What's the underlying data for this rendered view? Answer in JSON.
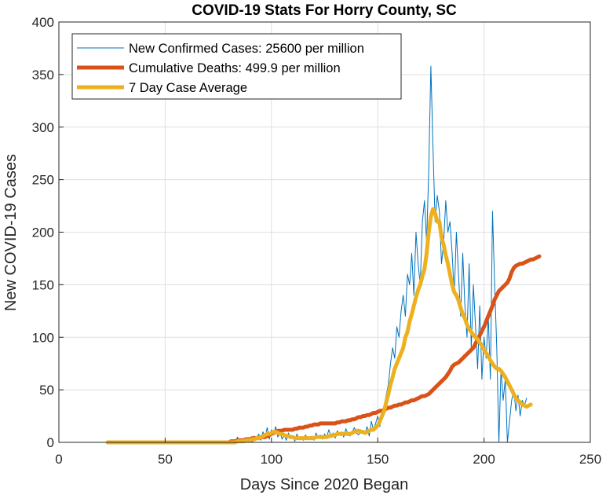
{
  "chart_data": {
    "type": "line",
    "title": "COVID-19 Stats For Horry County, SC",
    "xlabel": "Days Since 2020 Began",
    "ylabel": "New COVID-19 Cases",
    "xlim": [
      0,
      250
    ],
    "ylim": [
      0,
      400
    ],
    "xticks": [
      0,
      50,
      100,
      150,
      200,
      250
    ],
    "yticks": [
      0,
      50,
      100,
      150,
      200,
      250,
      300,
      350,
      400
    ],
    "grid": true,
    "legend_position": "top-left",
    "series": [
      {
        "name": "New Confirmed Cases: 25600 per million",
        "color": "#0072BD",
        "style": "thin",
        "x_start": 23,
        "values": [
          0,
          0,
          0,
          0,
          0,
          0,
          0,
          0,
          0,
          0,
          0,
          0,
          0,
          0,
          0,
          0,
          0,
          0,
          0,
          0,
          0,
          0,
          0,
          0,
          0,
          0,
          0,
          0,
          0,
          0,
          0,
          0,
          0,
          0,
          0,
          0,
          0,
          0,
          0,
          0,
          0,
          0,
          0,
          0,
          0,
          0,
          0,
          0,
          0,
          0,
          0,
          0,
          0,
          0,
          0,
          0,
          0,
          1,
          0,
          2,
          0,
          5,
          1,
          0,
          3,
          0,
          2,
          4,
          0,
          6,
          3,
          8,
          2,
          10,
          5,
          14,
          3,
          12,
          8,
          15,
          5,
          10,
          3,
          7,
          2,
          9,
          4,
          6,
          1,
          8,
          3,
          5,
          2,
          7,
          4,
          3,
          6,
          2,
          9,
          4,
          7,
          3,
          8,
          5,
          12,
          6,
          9,
          4,
          11,
          7,
          10,
          5,
          13,
          8,
          6,
          10,
          14,
          9,
          7,
          12,
          10,
          8,
          15,
          6,
          20,
          12,
          18,
          25,
          15,
          28,
          35,
          45,
          55,
          75,
          90,
          80,
          110,
          100,
          125,
          140,
          120,
          160,
          150,
          180,
          140,
          200,
          170,
          150,
          210,
          230,
          190,
          260,
          358,
          280,
          210,
          235,
          220,
          170,
          190,
          230,
          200,
          210,
          180,
          140,
          200,
          160,
          120,
          180,
          130,
          100,
          170,
          90,
          150,
          110,
          70,
          130,
          60,
          100,
          80,
          120,
          60,
          220,
          150,
          90,
          0,
          70,
          40,
          60,
          0,
          20,
          40,
          50,
          30,
          45,
          25,
          40,
          35,
          42
        ]
      },
      {
        "name": "Cumulative Deaths: 499.9 per million",
        "color": "#D95319",
        "style": "thick",
        "x_start": 23,
        "values": [
          0,
          0,
          0,
          0,
          0,
          0,
          0,
          0,
          0,
          0,
          0,
          0,
          0,
          0,
          0,
          0,
          0,
          0,
          0,
          0,
          0,
          0,
          0,
          0,
          0,
          0,
          0,
          0,
          0,
          0,
          0,
          0,
          0,
          0,
          0,
          0,
          0,
          0,
          0,
          0,
          0,
          0,
          0,
          0,
          0,
          0,
          0,
          0,
          0,
          0,
          0,
          0,
          0,
          0,
          0,
          0,
          0,
          0,
          1,
          1,
          1,
          2,
          2,
          2,
          2,
          3,
          3,
          3,
          4,
          4,
          4,
          4,
          5,
          5,
          5,
          6,
          7,
          8,
          9,
          10,
          11,
          11,
          11,
          12,
          12,
          12,
          12,
          12,
          13,
          13,
          14,
          14,
          14,
          15,
          15,
          16,
          16,
          17,
          17,
          17,
          18,
          18,
          18,
          18,
          18,
          18,
          18,
          18,
          19,
          19,
          20,
          20,
          20,
          21,
          21,
          22,
          22,
          23,
          24,
          24,
          25,
          25,
          26,
          26,
          27,
          28,
          28,
          29,
          30,
          30,
          31,
          32,
          33,
          33,
          34,
          35,
          35,
          36,
          36,
          37,
          38,
          38,
          39,
          40,
          40,
          41,
          42,
          43,
          44,
          44,
          45,
          46,
          48,
          50,
          52,
          54,
          56,
          58,
          60,
          62,
          65,
          68,
          72,
          74,
          75,
          76,
          78,
          80,
          82,
          84,
          86,
          88,
          90,
          94,
          98,
          102,
          106,
          110,
          115,
          120,
          125,
          130,
          136,
          140,
          144,
          146,
          148,
          150,
          152,
          156,
          162,
          166,
          168,
          169,
          170,
          170,
          171,
          172,
          173,
          174,
          174,
          175,
          176,
          177
        ]
      },
      {
        "name": "7 Day Case Average",
        "color": "#EDB120",
        "style": "thick",
        "x_start": 23,
        "values": [
          0,
          0,
          0,
          0,
          0,
          0,
          0,
          0,
          0,
          0,
          0,
          0,
          0,
          0,
          0,
          0,
          0,
          0,
          0,
          0,
          0,
          0,
          0,
          0,
          0,
          0,
          0,
          0,
          0,
          0,
          0,
          0,
          0,
          0,
          0,
          0,
          0,
          0,
          0,
          0,
          0,
          0,
          0,
          0,
          0,
          0,
          0,
          0,
          0,
          0,
          0,
          0,
          0,
          0,
          0,
          0,
          0,
          0,
          0,
          0,
          0,
          1,
          1,
          1,
          1,
          2,
          2,
          2,
          3,
          3,
          4,
          4,
          5,
          6,
          7,
          8,
          8,
          9,
          10,
          10,
          9,
          8,
          8,
          7,
          6,
          6,
          5,
          5,
          4,
          4,
          4,
          4,
          4,
          4,
          4,
          4,
          4,
          4,
          5,
          5,
          5,
          5,
          5,
          5,
          6,
          6,
          7,
          7,
          8,
          8,
          8,
          8,
          8,
          8,
          8,
          9,
          10,
          11,
          11,
          10,
          10,
          9,
          10,
          11,
          12,
          12,
          14,
          16,
          20,
          25,
          30,
          38,
          46,
          55,
          62,
          70,
          75,
          80,
          85,
          90,
          100,
          105,
          115,
          122,
          130,
          138,
          145,
          150,
          158,
          165,
          180,
          200,
          215,
          222,
          218,
          210,
          210,
          195,
          188,
          178,
          170,
          160,
          150,
          143,
          140,
          135,
          128,
          122,
          118,
          112,
          108,
          105,
          102,
          100,
          98,
          95,
          92,
          88,
          85,
          82,
          78,
          75,
          72,
          70,
          70,
          68,
          65,
          62,
          58,
          54,
          50,
          46,
          42,
          40,
          38,
          36,
          35,
          34,
          35,
          36
        ]
      }
    ]
  }
}
